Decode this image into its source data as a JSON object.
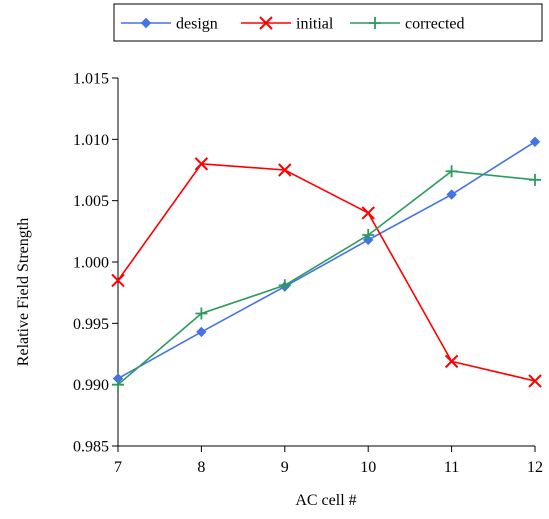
{
  "chart_data": {
    "type": "line",
    "xlabel": "AC cell #",
    "ylabel": "Relative Field Strength",
    "x": [
      7,
      8,
      9,
      10,
      11,
      12
    ],
    "xlim": [
      7,
      12
    ],
    "ylim": [
      0.985,
      1.015
    ],
    "x_ticks": [
      "7",
      "8",
      "9",
      "10",
      "11",
      "12"
    ],
    "y_ticks": [
      "0.985",
      "0.990",
      "0.995",
      "1.000",
      "1.005",
      "1.010",
      "1.015"
    ],
    "grid": false,
    "legend_position": "top",
    "series": [
      {
        "name": "design",
        "color": "#4472e8",
        "marker": "diamond",
        "values": [
          0.9905,
          0.9943,
          0.998,
          1.0018,
          1.0055,
          1.0098
        ]
      },
      {
        "name": "initial",
        "color": "#ff0000",
        "marker": "x",
        "values": [
          0.9985,
          1.008,
          1.0075,
          1.004,
          0.9919,
          0.9903
        ]
      },
      {
        "name": "corrected",
        "color": "#2e9a5e",
        "marker": "plus",
        "values": [
          0.99,
          0.9958,
          0.9981,
          1.0022,
          1.0074,
          1.0067
        ]
      }
    ]
  }
}
